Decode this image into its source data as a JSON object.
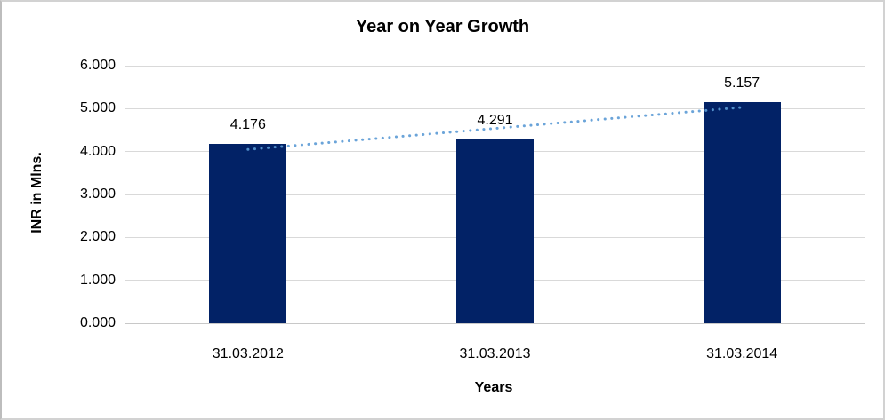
{
  "window": {
    "background": "#ffffff",
    "border_color": "#d2d2d2"
  },
  "chart_data": {
    "type": "bar",
    "title": "Year on Year Growth",
    "xlabel": "Years",
    "ylabel": "INR in Mlns.",
    "categories": [
      "31.03.2012",
      "31.03.2013",
      "31.03.2014"
    ],
    "values": [
      4.176,
      4.291,
      5.157
    ],
    "data_labels": [
      "4.176",
      "4.291",
      "5.157"
    ],
    "ylim": [
      0,
      6
    ],
    "ytick_labels": [
      "0.000",
      "1.000",
      "2.000",
      "3.000",
      "4.000",
      "5.000",
      "6.000"
    ],
    "grid": true,
    "legend_position": "none",
    "bar_color": "#022266",
    "gridline_color": "#d9d9d9",
    "axisline_color": "#c8c8c8",
    "trendline": {
      "style": "dotted",
      "color": "#5b9bd5",
      "start_value": 4.05,
      "end_value": 5.03
    }
  }
}
